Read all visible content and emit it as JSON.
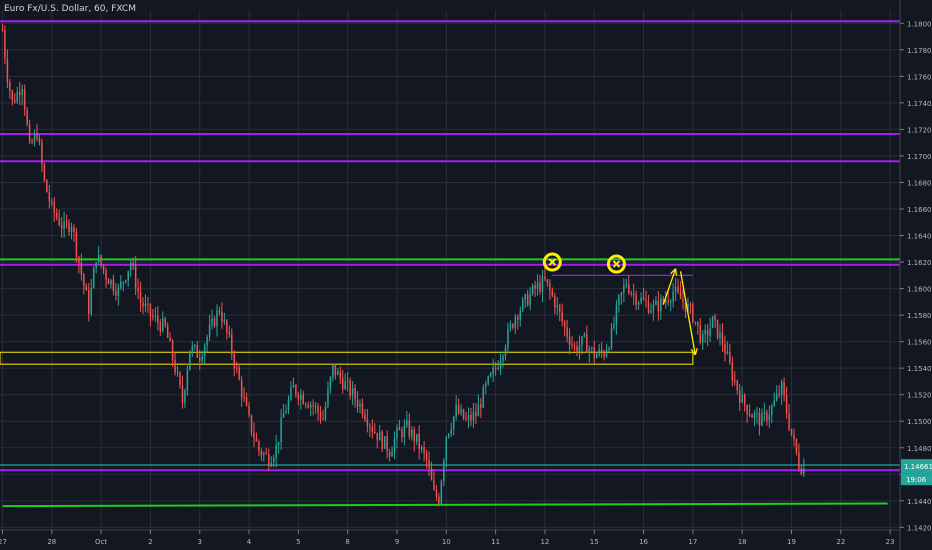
{
  "header": {
    "title": "Euro Fx/U.S. Dollar, 60, FXCM"
  },
  "colors": {
    "background": "#131722",
    "grid": "#2a2e39",
    "up": "#26a69a",
    "down": "#ef5350",
    "purple": "#a020f0",
    "green": "#22cc22",
    "yellow": "#ffee00",
    "price_tag": "#26a69a"
  },
  "chart_data": {
    "type": "candlestick",
    "title": "Euro Fx/U.S. Dollar, 60, FXCM",
    "ylim": [
      1.1418,
      1.181
    ],
    "y_ticks": [
      "1.14200",
      "1.14400",
      "1.14600",
      "1.14800",
      "1.15000",
      "1.15200",
      "1.15400",
      "1.15600",
      "1.15800",
      "1.16000",
      "1.16200",
      "1.16400",
      "1.16600",
      "1.16800",
      "1.17000",
      "1.17200",
      "1.17400",
      "1.17600",
      "1.17800",
      "1.18000"
    ],
    "x_tick_labels": [
      "27",
      "28",
      "Oct",
      "2",
      "3",
      "4",
      "5",
      "8",
      "9",
      "10",
      "11",
      "12",
      "15",
      "16",
      "17",
      "18",
      "19",
      "22",
      "23"
    ],
    "x_tick_index": [
      0,
      1,
      2,
      3,
      4,
      5,
      6,
      7,
      8,
      9,
      10,
      11,
      12,
      13,
      14,
      15,
      16,
      17,
      18
    ],
    "x_range": [
      -0.05,
      18.2
    ],
    "price_series": [
      [
        0.0,
        1.1795
      ],
      [
        0.08,
        1.1765
      ],
      [
        0.2,
        1.174
      ],
      [
        0.4,
        1.1755
      ],
      [
        0.55,
        1.1705
      ],
      [
        0.7,
        1.1718
      ],
      [
        0.85,
        1.168
      ],
      [
        1.0,
        1.166
      ],
      [
        1.25,
        1.1645
      ],
      [
        1.4,
        1.165
      ],
      [
        1.55,
        1.162
      ],
      [
        1.75,
        1.1585
      ],
      [
        1.9,
        1.1625
      ],
      [
        2.1,
        1.161
      ],
      [
        2.35,
        1.1598
      ],
      [
        2.6,
        1.162
      ],
      [
        2.8,
        1.159
      ],
      [
        3.0,
        1.158
      ],
      [
        3.3,
        1.157
      ],
      [
        3.5,
        1.154
      ],
      [
        3.65,
        1.1515
      ],
      [
        3.8,
        1.1555
      ],
      [
        4.0,
        1.155
      ],
      [
        4.2,
        1.1568
      ],
      [
        4.4,
        1.1585
      ],
      [
        4.6,
        1.156
      ],
      [
        4.8,
        1.153
      ],
      [
        5.0,
        1.15
      ],
      [
        5.2,
        1.1478
      ],
      [
        5.4,
        1.1472
      ],
      [
        5.55,
        1.148
      ],
      [
        5.7,
        1.1505
      ],
      [
        5.9,
        1.1525
      ],
      [
        6.1,
        1.1518
      ],
      [
        6.3,
        1.1512
      ],
      [
        6.5,
        1.1502
      ],
      [
        6.7,
        1.154
      ],
      [
        6.9,
        1.153
      ],
      [
        7.1,
        1.152
      ],
      [
        7.3,
        1.151
      ],
      [
        7.5,
        1.1495
      ],
      [
        7.7,
        1.1485
      ],
      [
        7.85,
        1.1478
      ],
      [
        8.0,
        1.149
      ],
      [
        8.2,
        1.1495
      ],
      [
        8.4,
        1.1485
      ],
      [
        8.6,
        1.147
      ],
      [
        8.75,
        1.1445
      ],
      [
        8.85,
        1.1442
      ],
      [
        9.0,
        1.149
      ],
      [
        9.2,
        1.1508
      ],
      [
        9.4,
        1.15
      ],
      [
        9.6,
        1.1505
      ],
      [
        9.8,
        1.1525
      ],
      [
        10.0,
        1.154
      ],
      [
        10.2,
        1.156
      ],
      [
        10.4,
        1.158
      ],
      [
        10.6,
        1.159
      ],
      [
        10.8,
        1.16
      ],
      [
        11.0,
        1.1605
      ],
      [
        11.2,
        1.159
      ],
      [
        11.4,
        1.157
      ],
      [
        11.6,
        1.1555
      ],
      [
        11.8,
        1.156
      ],
      [
        12.0,
        1.155
      ],
      [
        12.2,
        1.1552
      ],
      [
        12.35,
        1.1565
      ],
      [
        12.5,
        1.159
      ],
      [
        12.65,
        1.1605
      ],
      [
        12.8,
        1.1595
      ],
      [
        13.0,
        1.159
      ],
      [
        13.2,
        1.1585
      ],
      [
        13.4,
        1.159
      ],
      [
        13.6,
        1.1598
      ],
      [
        13.8,
        1.159
      ],
      [
        14.0,
        1.158
      ],
      [
        14.2,
        1.156
      ],
      [
        14.4,
        1.1575
      ],
      [
        14.6,
        1.156
      ],
      [
        14.8,
        1.1535
      ],
      [
        15.0,
        1.1515
      ],
      [
        15.2,
        1.1505
      ],
      [
        15.4,
        1.15
      ],
      [
        15.6,
        1.151
      ],
      [
        15.8,
        1.1525
      ],
      [
        16.0,
        1.149
      ],
      [
        16.15,
        1.1468
      ],
      [
        16.25,
        1.1464
      ]
    ],
    "horizontal_levels": [
      {
        "price": 1.18015,
        "color": "purple"
      },
      {
        "price": 1.17165,
        "color": "purple"
      },
      {
        "price": 1.1696,
        "color": "purple"
      },
      {
        "price": 1.1622,
        "color": "green"
      },
      {
        "price": 1.1618,
        "color": "purple"
      },
      {
        "price": 1.1463,
        "color": "purple"
      }
    ],
    "support_line": {
      "x_start": 0.0,
      "y_start": 1.1436,
      "x_end": 17.95,
      "y_end": 1.1438,
      "color": "green"
    },
    "zones": [
      {
        "x_start": -0.05,
        "x_end": 14.0,
        "y_top": 1.1552,
        "y_bottom": 1.1543,
        "color": "yellow"
      }
    ],
    "short_lines": [
      {
        "x_start": 11.15,
        "x_end": 14.0,
        "price": 1.161,
        "color": "purple"
      },
      {
        "x_start": -0.05,
        "x_end": 18.2,
        "price": 1.1467,
        "color": "price_tag"
      }
    ],
    "markers": [
      {
        "x": 11.15,
        "price": 1.162,
        "symbol": "circle-x",
        "color": "yellow"
      },
      {
        "x": 12.45,
        "price": 1.16185,
        "symbol": "circle-x",
        "color": "yellow"
      }
    ],
    "arrows": [
      {
        "x1": 13.4,
        "y1": 1.1588,
        "x2": 13.65,
        "y2": 1.1615,
        "color": "yellow"
      },
      {
        "x1": 13.75,
        "y1": 1.1613,
        "x2": 14.05,
        "y2": 1.155,
        "color": "yellow"
      }
    ],
    "last_price": {
      "label": "1.14661",
      "price": 1.14661
    },
    "countdown": {
      "label": "19:06"
    }
  }
}
